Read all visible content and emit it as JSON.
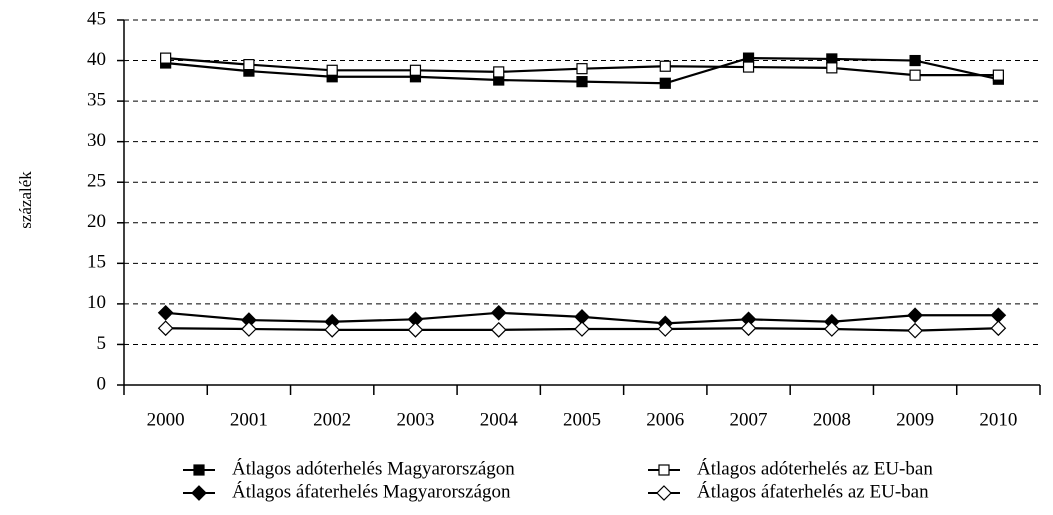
{
  "chart_data": {
    "type": "line",
    "y_label": "százalék",
    "categories": [
      "2000",
      "2001",
      "2002",
      "2003",
      "2004",
      "2005",
      "2006",
      "2007",
      "2008",
      "2009",
      "2010"
    ],
    "series": [
      {
        "name": "Átlagos adóterhelés Magyarországon",
        "color": "#000000",
        "marker": "square",
        "filled": true,
        "values": [
          39.7,
          38.7,
          38.0,
          38.0,
          37.6,
          37.4,
          37.2,
          40.3,
          40.2,
          40.0,
          37.7
        ]
      },
      {
        "name": "Átlagos adóterhelés az EU-ban",
        "color": "#000000",
        "marker": "square",
        "filled": false,
        "values": [
          40.3,
          39.5,
          38.8,
          38.8,
          38.6,
          39.0,
          39.3,
          39.2,
          39.1,
          38.2,
          38.2
        ]
      },
      {
        "name": "Átlagos áfaterhelés Magyarországon",
        "color": "#000000",
        "marker": "diamond",
        "filled": true,
        "values": [
          8.9,
          8.0,
          7.8,
          8.1,
          8.9,
          8.4,
          7.6,
          8.1,
          7.8,
          8.6,
          8.6
        ]
      },
      {
        "name": "Átlagos áfaterhelés az EU-ban",
        "color": "#000000",
        "marker": "diamond",
        "filled": false,
        "values": [
          7.0,
          6.9,
          6.8,
          6.8,
          6.8,
          6.9,
          6.9,
          7.0,
          6.9,
          6.7,
          7.0
        ]
      }
    ],
    "ylim": [
      0,
      45
    ],
    "yticks": [
      0,
      5,
      10,
      15,
      20,
      25,
      30,
      35,
      40,
      45
    ],
    "grid": true
  }
}
